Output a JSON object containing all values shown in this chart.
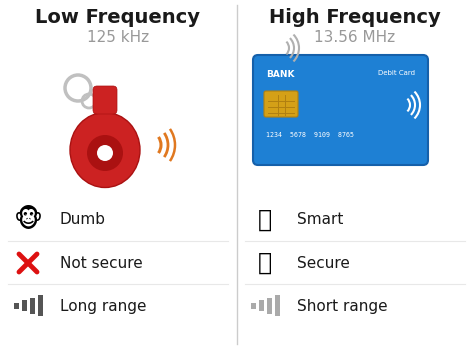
{
  "bg_color": "#ffffff",
  "divider_color": "#cccccc",
  "left_title": "Low Frequency",
  "right_title": "High Frequency",
  "left_subtitle": "125 kHz",
  "right_subtitle": "13.56 MHz",
  "title_color": "#1a1a1a",
  "subtitle_color": "#999999",
  "item_text_color": "#1a1a1a",
  "item_text_size": 11,
  "title_size": 14,
  "subtitle_size": 11,
  "left_texts": [
    "Dumb",
    "Not secure",
    "Long range"
  ],
  "right_texts": [
    "Smart",
    "Secure",
    "Short range"
  ],
  "fob_color": "#cc2222",
  "fob_dark": "#aa1111",
  "ring_color": "#c0c0c0",
  "arc_color": "#e07820",
  "card_color": "#1e80d4",
  "card_dark": "#1560aa",
  "chip_color": "#d4a017",
  "chip_dark": "#b08010",
  "card_text": "#ffffff",
  "grey_arc": "#b0b0b0",
  "bar_full": "#555555",
  "bar_short": "#aaaaaa"
}
